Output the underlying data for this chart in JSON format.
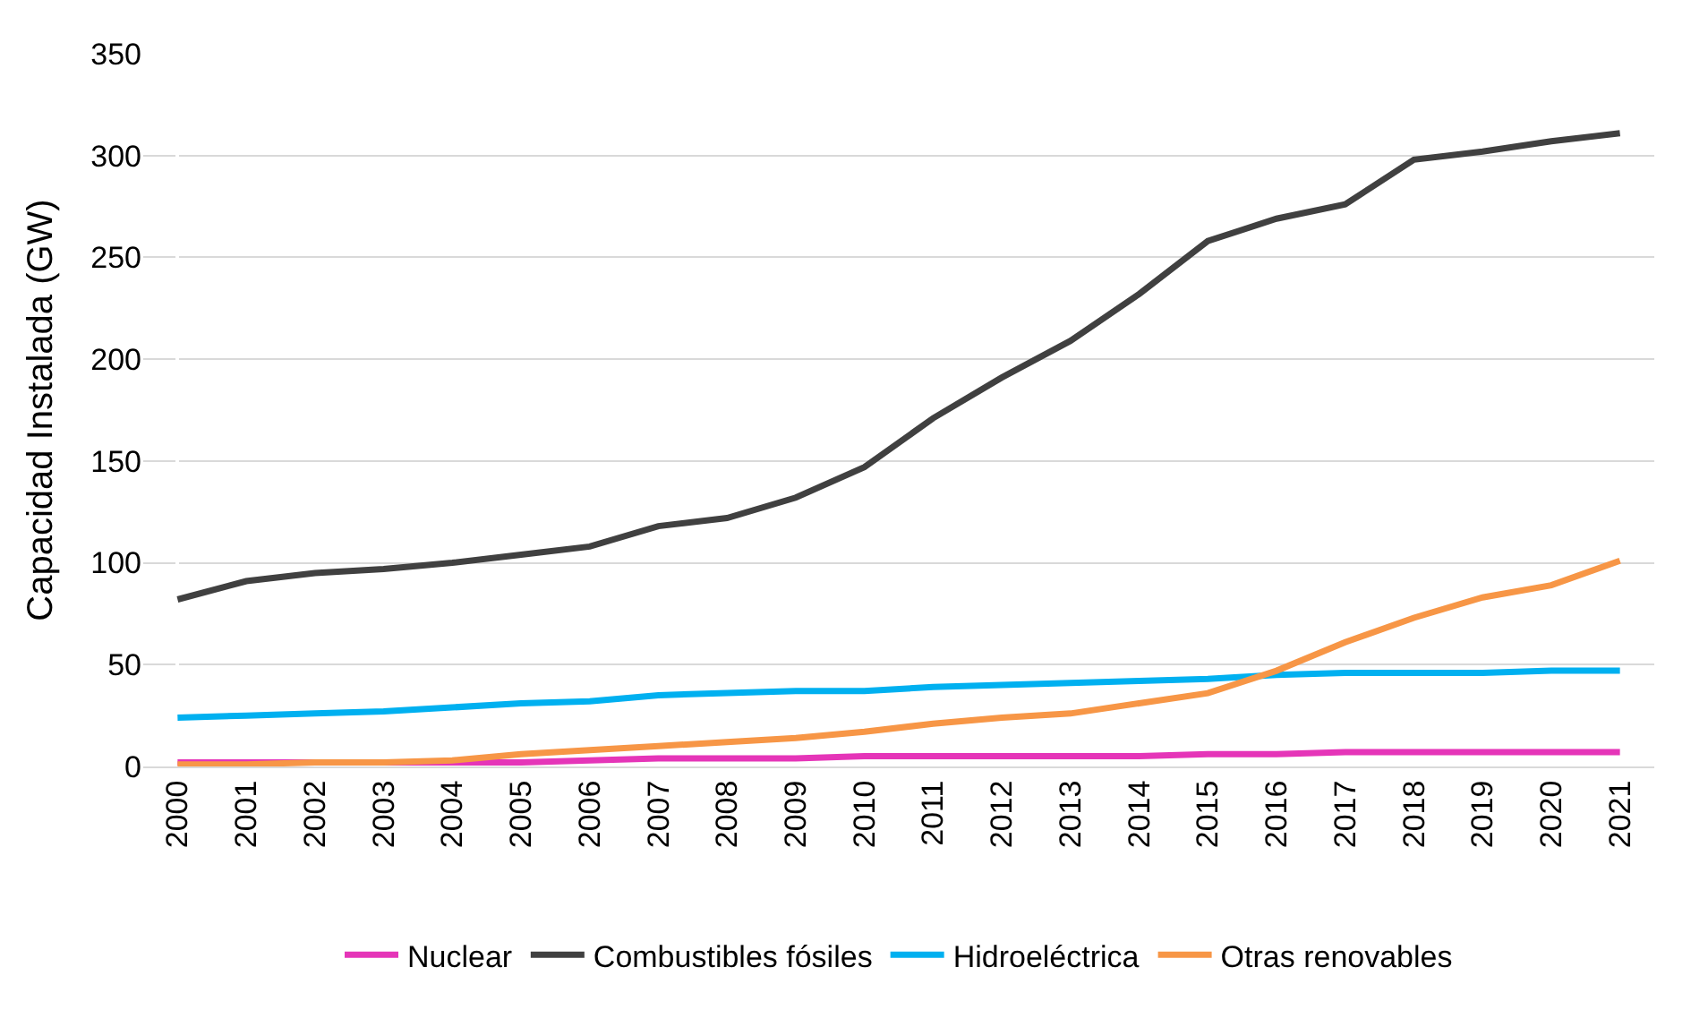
{
  "chart_data": {
    "type": "line",
    "ylabel": "Capacidad Instalada (GW)",
    "categories": [
      "2000",
      "2001",
      "2002",
      "2003",
      "2004",
      "2005",
      "2006",
      "2007",
      "2008",
      "2009",
      "2010",
      "2011",
      "2012",
      "2013",
      "2014",
      "2015",
      "2016",
      "2017",
      "2018",
      "2019",
      "2020",
      "2021"
    ],
    "series": [
      {
        "name": "Nuclear",
        "color": "#e535b8",
        "values": [
          2,
          2,
          2,
          2,
          2,
          2,
          3,
          4,
          4,
          4,
          5,
          5,
          5,
          5,
          5,
          6,
          6,
          7,
          7,
          7,
          7,
          7
        ]
      },
      {
        "name": "Combustibles fósiles",
        "color": "#404040",
        "values": [
          82,
          91,
          95,
          97,
          100,
          104,
          108,
          118,
          122,
          132,
          147,
          171,
          191,
          209,
          232,
          258,
          269,
          276,
          298,
          302,
          307,
          311
        ]
      },
      {
        "name": "Hidroeléctrica",
        "color": "#00b0f0",
        "values": [
          24,
          25,
          26,
          27,
          29,
          31,
          32,
          35,
          36,
          37,
          37,
          39,
          40,
          41,
          42,
          43,
          45,
          46,
          46,
          46,
          47,
          47
        ]
      },
      {
        "name": "Otras renovables",
        "color": "#f79646",
        "values": [
          1,
          1,
          2,
          2,
          3,
          6,
          8,
          10,
          12,
          14,
          17,
          21,
          24,
          26,
          31,
          36,
          47,
          61,
          73,
          83,
          89,
          101
        ]
      }
    ],
    "ylim": [
      0,
      350
    ],
    "yticks": [
      0,
      50,
      100,
      150,
      200,
      250,
      300,
      350
    ],
    "grid": "y",
    "legend": "bottom",
    "marker": "none",
    "line_style": "solid"
  }
}
